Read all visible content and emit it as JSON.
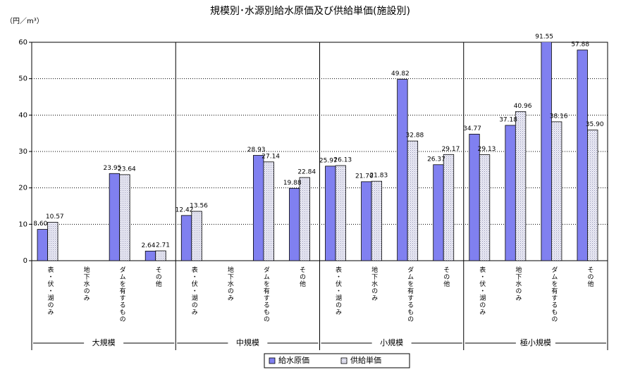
{
  "chart_data": {
    "type": "bar",
    "title": "規模別･水源別給水原価及び供給単価(施設別)",
    "y_label": "（円／m³）",
    "categories": [
      "表・伏・湖のみ",
      "地下水のみ",
      "ダムを有するもの",
      "その他",
      "表・伏・湖のみ",
      "地下水のみ",
      "ダムを有するもの",
      "その他",
      "表・伏・湖のみ",
      "地下水のみ",
      "ダムを有するもの",
      "その他",
      "表・伏・湖のみ",
      "地下水のみ",
      "ダムを有するもの",
      "その他"
    ],
    "groups": [
      "大規模",
      "中規模",
      "小規模",
      "極小規模"
    ],
    "series": [
      {
        "name": "給水原価",
        "color": "#8080f0",
        "values": [
          8.6,
          null,
          23.95,
          2.64,
          12.42,
          null,
          28.93,
          19.88,
          25.97,
          21.7,
          49.82,
          26.37,
          34.77,
          37.18,
          91.55,
          57.88
        ],
        "value_labels": [
          "8.60",
          null,
          "23.95",
          "2.64",
          "12.42",
          null,
          "28.93",
          "19.88",
          "25.97",
          "21.70",
          "49.82",
          "26.37",
          "34.77",
          "37.18",
          "91.55",
          "57.88"
        ]
      },
      {
        "name": "供給単価",
        "color": "#e8e8f4",
        "values": [
          10.57,
          null,
          23.64,
          2.71,
          13.56,
          null,
          27.14,
          22.84,
          26.13,
          21.83,
          32.88,
          29.17,
          29.13,
          40.96,
          38.16,
          35.9
        ],
        "value_labels": [
          "10.57",
          null,
          "23.64",
          "2.71",
          "13.56",
          null,
          "27.14",
          "22.84",
          "26.13",
          "21.83",
          "32.88",
          "29.17",
          "29.13",
          "40.96",
          "38.16",
          "35.90"
        ]
      }
    ],
    "ylim": [
      0,
      60
    ],
    "yticks": [
      0,
      10,
      20,
      30,
      40,
      50,
      60
    ],
    "grid": true
  }
}
